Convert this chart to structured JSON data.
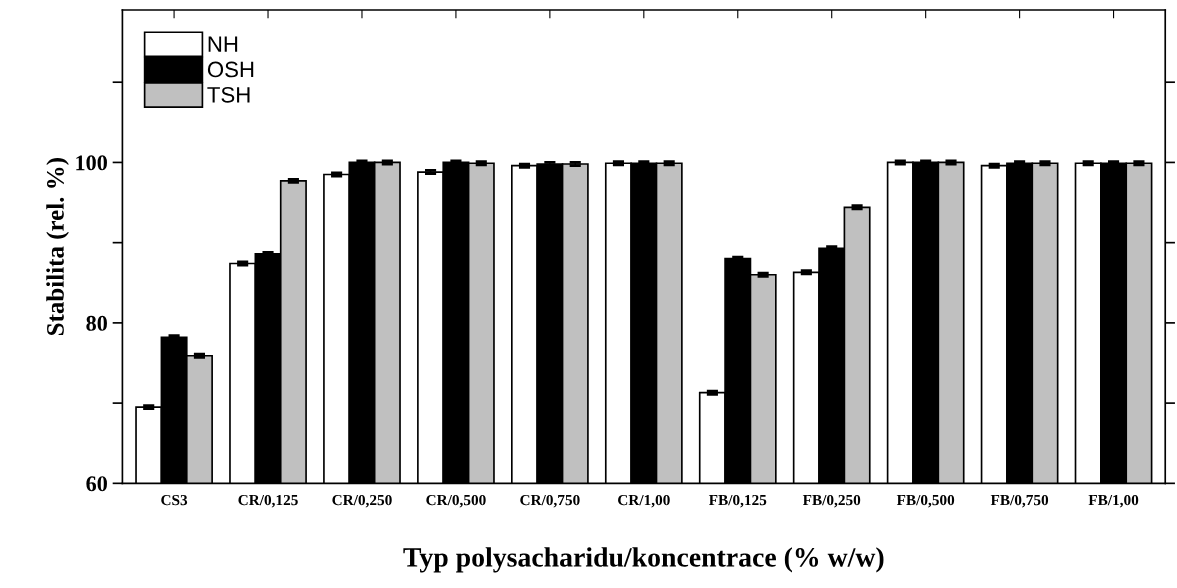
{
  "chart_data": {
    "type": "bar",
    "xlabel": "Typ polysacharidu/koncentrace (% w/w)",
    "ylabel": "Stabilita (rel. %)",
    "categories": [
      "CS3",
      "CR/0,125",
      "CR/0,250",
      "CR/0,500",
      "CR/0,750",
      "CR/1,00",
      "FB/0,125",
      "FB/0,250",
      "FB/0,500",
      "FB/0,750",
      "FB/1,00"
    ],
    "series": [
      {
        "name": "NH",
        "color": "#ffffff",
        "values": [
          69.5,
          87.4,
          98.5,
          98.8,
          99.6,
          99.9,
          71.3,
          86.3,
          100,
          99.6,
          99.9
        ],
        "errors": [
          0.2,
          0.2,
          0.2,
          0.2,
          0.2,
          0.2,
          0.2,
          0.2,
          0.2,
          0.2,
          0.2
        ]
      },
      {
        "name": "OSH",
        "color": "#000000",
        "values": [
          78.2,
          88.6,
          100,
          100,
          99.8,
          99.9,
          88.0,
          89.3,
          100,
          99.9,
          99.9
        ],
        "errors": [
          0.2,
          0.2,
          0.2,
          0.2,
          0.2,
          0.2,
          0.2,
          0.2,
          0.2,
          0.2,
          0.2
        ]
      },
      {
        "name": "TSH",
        "color": "#c0c0c0",
        "values": [
          75.9,
          97.7,
          100,
          99.9,
          99.8,
          99.9,
          86.0,
          94.4,
          100,
          99.9,
          99.9
        ],
        "errors": [
          0.2,
          0.2,
          0.2,
          0.2,
          0.2,
          0.2,
          0.2,
          0.2,
          0.2,
          0.2,
          0.2
        ]
      }
    ],
    "ylim": [
      60,
      119
    ],
    "yticks": [
      60,
      {
        "value": 70,
        "label": null
      },
      80,
      {
        "value": 90,
        "label": null
      },
      100,
      {
        "value": 110,
        "label": null
      }
    ],
    "grid": false,
    "legend": "top left"
  }
}
